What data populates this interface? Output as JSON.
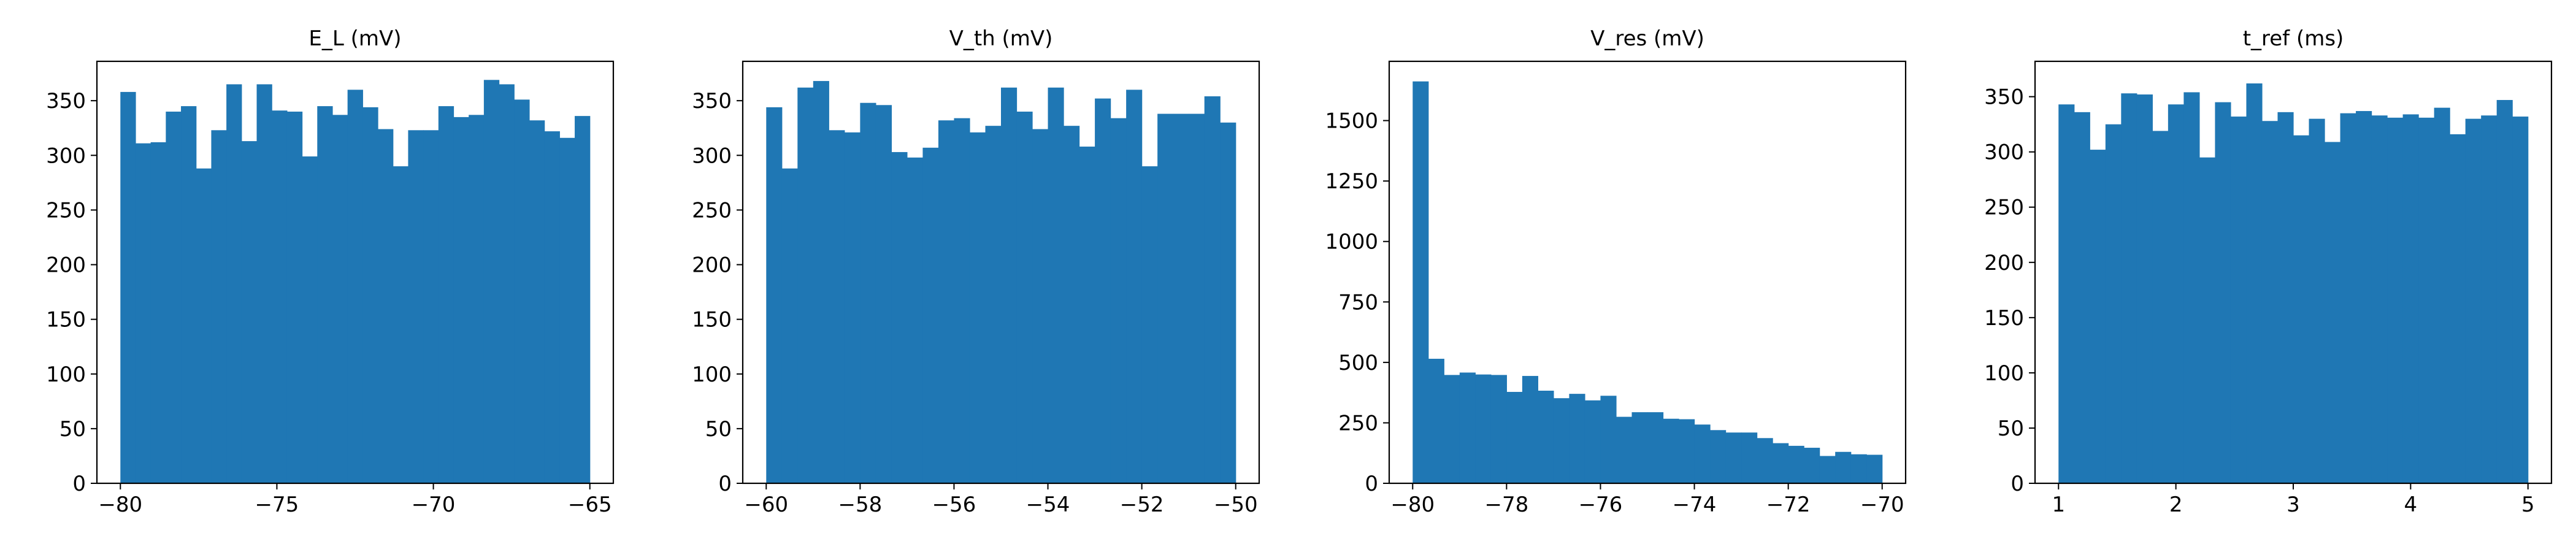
{
  "bar_color": "#1f77b4",
  "chart_data": [
    {
      "type": "bar",
      "title": "E_L  (mV)",
      "xlabel": "",
      "ylabel": "",
      "xlim": [
        -80.75,
        -64.25
      ],
      "ylim": [
        0,
        386
      ],
      "bin_start": -80,
      "bin_end": -65,
      "values": [
        358,
        311,
        312,
        340,
        345,
        288,
        323,
        365,
        313,
        365,
        341,
        340,
        299,
        345,
        337,
        360,
        344,
        324,
        290,
        323,
        323,
        345,
        335,
        337,
        369,
        365,
        351,
        332,
        322,
        316,
        336
      ],
      "xticks": [
        -80,
        -75,
        -70,
        -65
      ],
      "xtick_labels": [
        "−80",
        "−75",
        "−70",
        "−65"
      ],
      "yticks": [
        0,
        50,
        100,
        150,
        200,
        250,
        300,
        350
      ],
      "ytick_labels": [
        "0",
        "50",
        "100",
        "150",
        "200",
        "250",
        "300",
        "350"
      ]
    },
    {
      "type": "bar",
      "title": "V_th (mV)",
      "xlabel": "",
      "ylabel": "",
      "xlim": [
        -60.5,
        -49.5
      ],
      "ylim": [
        0,
        386
      ],
      "bin_start": -60,
      "bin_end": -50,
      "values": [
        344,
        288,
        362,
        368,
        323,
        321,
        348,
        346,
        303,
        298,
        307,
        332,
        334,
        321,
        327,
        362,
        340,
        324,
        362,
        327,
        308,
        352,
        334,
        360,
        290,
        338,
        338,
        338,
        354,
        330
      ],
      "xticks": [
        -60,
        -58,
        -56,
        -54,
        -52,
        -50
      ],
      "xtick_labels": [
        "−60",
        "−58",
        "−56",
        "−54",
        "−52",
        "−50"
      ],
      "yticks": [
        0,
        50,
        100,
        150,
        200,
        250,
        300,
        350
      ],
      "ytick_labels": [
        "0",
        "50",
        "100",
        "150",
        "200",
        "250",
        "300",
        "350"
      ]
    },
    {
      "type": "bar",
      "title": "V_res (mV)",
      "xlabel": "",
      "ylabel": "",
      "xlim": [
        -80.5,
        -69.5
      ],
      "ylim": [
        0,
        1745
      ],
      "bin_start": -80,
      "bin_end": -70,
      "values": [
        1662,
        515,
        448,
        458,
        450,
        448,
        378,
        444,
        383,
        352,
        370,
        343,
        362,
        275,
        294,
        294,
        267,
        265,
        243,
        220,
        210,
        210,
        187,
        166,
        155,
        147,
        113,
        130,
        120,
        118
      ],
      "xticks": [
        -80,
        -78,
        -76,
        -74,
        -72,
        -70
      ],
      "xtick_labels": [
        "−80",
        "−78",
        "−76",
        "−74",
        "−72",
        "−70"
      ],
      "yticks": [
        0,
        250,
        500,
        750,
        1000,
        1250,
        1500
      ],
      "ytick_labels": [
        "0",
        "250",
        "500",
        "750",
        "1000",
        "1250",
        "1500"
      ]
    },
    {
      "type": "bar",
      "title": "t_ref (ms)",
      "xlabel": "",
      "ylabel": "",
      "xlim": [
        0.8,
        5.2
      ],
      "ylim": [
        0,
        382
      ],
      "bin_start": 1,
      "bin_end": 5,
      "values": [
        343,
        336,
        302,
        325,
        353,
        352,
        319,
        343,
        354,
        295,
        345,
        332,
        362,
        328,
        336,
        315,
        330,
        309,
        335,
        337,
        333,
        331,
        334,
        331,
        340,
        316,
        330,
        333,
        347,
        332
      ],
      "xticks": [
        1,
        2,
        3,
        4,
        5
      ],
      "xtick_labels": [
        "1",
        "2",
        "3",
        "4",
        "5"
      ],
      "yticks": [
        0,
        50,
        100,
        150,
        200,
        250,
        300,
        350
      ],
      "ytick_labels": [
        "0",
        "50",
        "100",
        "150",
        "200",
        "250",
        "300",
        "350"
      ]
    }
  ]
}
